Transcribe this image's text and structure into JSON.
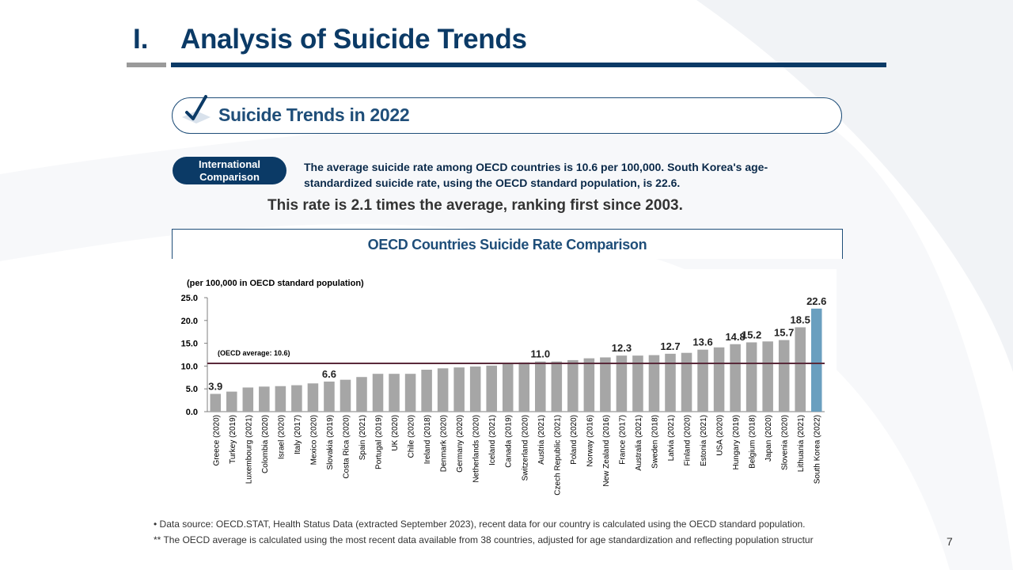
{
  "header": {
    "section_number": "I.",
    "title": "Analysis of Suicide Trends"
  },
  "subheader": {
    "title": "Suicide Trends in 2022"
  },
  "badge": {
    "line1": "International",
    "line2": "Comparison"
  },
  "description": {
    "line1": "The average suicide rate among OECD countries is 10.6 per 100,000. South Korea's age-",
    "line2": "standardized suicide rate, using the OECD standard population, is 22.6.",
    "highlight": "This rate is 2.1 times the average, ranking first since 2003."
  },
  "chart_title": "OECD Countries Suicide Rate Comparison",
  "chart_data": {
    "type": "bar",
    "title": "OECD Countries Suicide Rate Comparison",
    "unit_note": "(per 100,000 in OECD standard population)",
    "xlabel": "",
    "ylabel": "",
    "ylim": [
      0,
      25
    ],
    "yticks": [
      "0.0",
      "5.0",
      "10.0",
      "15.0",
      "20.0",
      "25.0"
    ],
    "categories": [
      "Greece (2020)",
      "Turkey (2019)",
      "Luxembourg (2021)",
      "Colombia (2020)",
      "Israel (2020)",
      "Italy (2017)",
      "Mexico (2020)",
      "Slovakia (2019)",
      "Costa Rica (2020)",
      "Spain (2021)",
      "Portugal (2019)",
      "UK (2020)",
      "Chile (2020)",
      "Ireland (2018)",
      "Denmark (2020)",
      "Germany (2020)",
      "Netherlands (2020)",
      "Iceland (2021)",
      "Canada (2019)",
      "Switzerland (2020)",
      "Austria (2021)",
      "Czech Republic (2021)",
      "Poland (2020)",
      "Norway (2016)",
      "New Zealand (2016)",
      "France (2017)",
      "Australia (2021)",
      "Sweden (2018)",
      "Latvia (2021)",
      "Finland (2020)",
      "Estonia (2021)",
      "USA (2020)",
      "Hungary (2019)",
      "Belgium (2018)",
      "Japan (2020)",
      "Slovenia (2020)",
      "Lithuania (2021)",
      "South Korea (2022)"
    ],
    "values": [
      3.9,
      4.4,
      5.3,
      5.5,
      5.6,
      5.8,
      6.2,
      6.6,
      7.0,
      7.6,
      8.3,
      8.3,
      8.3,
      9.2,
      9.5,
      9.7,
      9.9,
      10.1,
      10.6,
      10.8,
      11.0,
      11.0,
      11.3,
      11.7,
      11.9,
      12.3,
      12.3,
      12.4,
      12.7,
      12.9,
      13.6,
      14.1,
      14.8,
      15.2,
      15.4,
      15.7,
      18.5,
      22.6
    ],
    "highlighted_category": "South Korea (2022)",
    "data_labels": [
      {
        "category": "Greece (2020)",
        "label": "3.9"
      },
      {
        "category": "Slovakia (2019)",
        "label": "6.6"
      },
      {
        "category": "Austria (2021)",
        "label": "11.0"
      },
      {
        "category": "France (2017)",
        "label": "12.3"
      },
      {
        "category": "Latvia (2021)",
        "label": "12.7"
      },
      {
        "category": "Estonia (2021)",
        "label": "13.6"
      },
      {
        "category": "Hungary (2019)",
        "label": "14.8"
      },
      {
        "category": "Belgium (2018)",
        "label": "15.2"
      },
      {
        "category": "Slovenia (2020)",
        "label": "15.7"
      },
      {
        "category": "Lithuania (2021)",
        "label": "18.5"
      },
      {
        "category": "South Korea (2022)",
        "label": "22.6"
      }
    ],
    "reference_line": {
      "value": 10.6,
      "label": "(OECD average: 10.6)"
    },
    "colors": {
      "bar": "#a6a6a6",
      "highlight": "#6a9fbf",
      "reference_line": "#5a2a3a"
    }
  },
  "footnotes": {
    "line1": "•   Data source: OECD.STAT, Health Status Data (extracted September 2023), recent data for our country is calculated using the OECD standard population.",
    "line2": "** The OECD average is calculated using the most recent data available from 38 countries, adjusted for age standardization and reflecting population structur"
  },
  "page_number": "7",
  "colors": {
    "navy": "#0b3a66",
    "accent": "#1f4e79",
    "gray_rule": "#9a9a9a"
  }
}
